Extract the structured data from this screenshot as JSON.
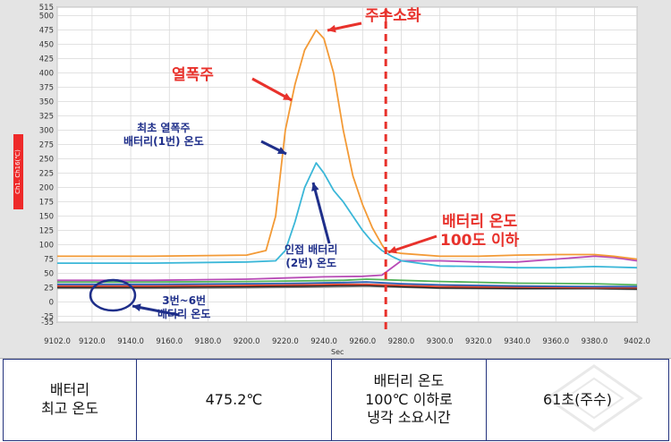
{
  "chart_data": {
    "type": "line",
    "ylabel": "Ch1. Ch16(℃)",
    "xlabel": "Sec",
    "xlim": [
      9102,
      9402
    ],
    "ylim": [
      -35,
      515
    ],
    "x_ticks": [
      "9102.0",
      "9120.0",
      "9140.0",
      "9160.0",
      "9180.0",
      "9200.0",
      "9220.0",
      "9240.0",
      "9260.0",
      "9280.0",
      "9300.0",
      "9320.0",
      "9340.0",
      "9360.0",
      "9380.0",
      "9402.0"
    ],
    "y_ticks": [
      "515",
      "500",
      "475",
      "450",
      "425",
      "400",
      "375",
      "350",
      "325",
      "300",
      "275",
      "250",
      "225",
      "200",
      "175",
      "150",
      "125",
      "100",
      "75",
      "50",
      "25",
      "0",
      "-25",
      "-35"
    ],
    "grid": true,
    "series": [
      {
        "color": "#f39a36",
        "x": [
          9102,
          9150,
          9200,
          9210,
          9215,
          9220,
          9225,
          9230,
          9236,
          9240,
          9245,
          9250,
          9255,
          9260,
          9265,
          9270,
          9272,
          9280,
          9300,
          9320,
          9340,
          9360,
          9380,
          9390,
          9402
        ],
        "y": [
          80,
          80,
          82,
          90,
          150,
          300,
          380,
          440,
          475,
          460,
          400,
          300,
          220,
          170,
          130,
          100,
          90,
          85,
          80,
          80,
          82,
          83,
          83,
          80,
          75
        ]
      },
      {
        "color": "#3bb7d8",
        "x": [
          9102,
          9150,
          9200,
          9215,
          9220,
          9225,
          9230,
          9236,
          9240,
          9245,
          9250,
          9255,
          9260,
          9265,
          9270,
          9275,
          9280,
          9300,
          9320,
          9340,
          9360,
          9380,
          9402
        ],
        "y": [
          68,
          68,
          70,
          72,
          90,
          140,
          200,
          243,
          225,
          195,
          175,
          150,
          125,
          105,
          90,
          80,
          72,
          63,
          62,
          60,
          60,
          62,
          60
        ]
      },
      {
        "color": "#b84bb6",
        "x": [
          9102,
          9150,
          9200,
          9220,
          9240,
          9260,
          9270,
          9280,
          9300,
          9320,
          9340,
          9360,
          9380,
          9390,
          9402
        ],
        "y": [
          38,
          38,
          40,
          42,
          44,
          45,
          47,
          72,
          72,
          70,
          70,
          75,
          80,
          78,
          72
        ]
      },
      {
        "color": "#53b35a",
        "x": [
          9102,
          9150,
          9200,
          9230,
          9250,
          9262,
          9280,
          9300,
          9340,
          9380,
          9402
        ],
        "y": [
          35,
          35,
          36,
          37,
          38,
          40,
          38,
          36,
          33,
          32,
          30
        ]
      },
      {
        "color": "#2b5fb5",
        "x": [
          9102,
          9150,
          9200,
          9230,
          9250,
          9262,
          9280,
          9300,
          9340,
          9380,
          9402
        ],
        "y": [
          31,
          31,
          32,
          33,
          34,
          35,
          32,
          30,
          28,
          27,
          27
        ]
      },
      {
        "color": "#e24a33",
        "x": [
          9102,
          9150,
          9200,
          9230,
          9250,
          9262,
          9280,
          9300,
          9340,
          9380,
          9402
        ],
        "y": [
          28,
          28,
          29,
          30,
          31,
          31,
          29,
          27,
          26,
          25,
          25
        ]
      },
      {
        "color": "#222222",
        "x": [
          9102,
          9150,
          9200,
          9230,
          9250,
          9262,
          9280,
          9300,
          9340,
          9380,
          9402
        ],
        "y": [
          26,
          26,
          27,
          28,
          29,
          29,
          27,
          25,
          24,
          24,
          23
        ]
      },
      {
        "color": "#8a8a8a",
        "x": [
          9102,
          9150,
          9200,
          9230,
          9250,
          9262,
          9280,
          9300,
          9340,
          9380,
          9402
        ],
        "y": [
          24,
          24,
          25,
          26,
          27,
          28,
          26,
          24,
          23,
          23,
          22
        ]
      }
    ],
    "cutoff_x": 9272,
    "annotations": {
      "extinguish": "주수소화",
      "thermal_runaway": "열폭주",
      "first_cell": [
        "최초 열폭주",
        "배터리(1번) 온도"
      ],
      "adjacent_cell": [
        "인접 배터리",
        "(2번) 온도"
      ],
      "below_100": [
        "배터리 온도",
        "100도 이하"
      ],
      "cells_3_6": [
        "3번~6번",
        "배터리 온도"
      ]
    }
  },
  "table": {
    "cells": [
      [
        "배터리",
        "최고 온도"
      ],
      [
        "475.2℃"
      ],
      [
        "배터리 온도",
        "100℃ 이하로",
        "냉각 소요시간"
      ],
      [
        "61초(주수)"
      ]
    ]
  },
  "colors": {
    "annotation_red": "#e8322c",
    "annotation_blue": "#1f2f8a",
    "border": "#24337d"
  }
}
